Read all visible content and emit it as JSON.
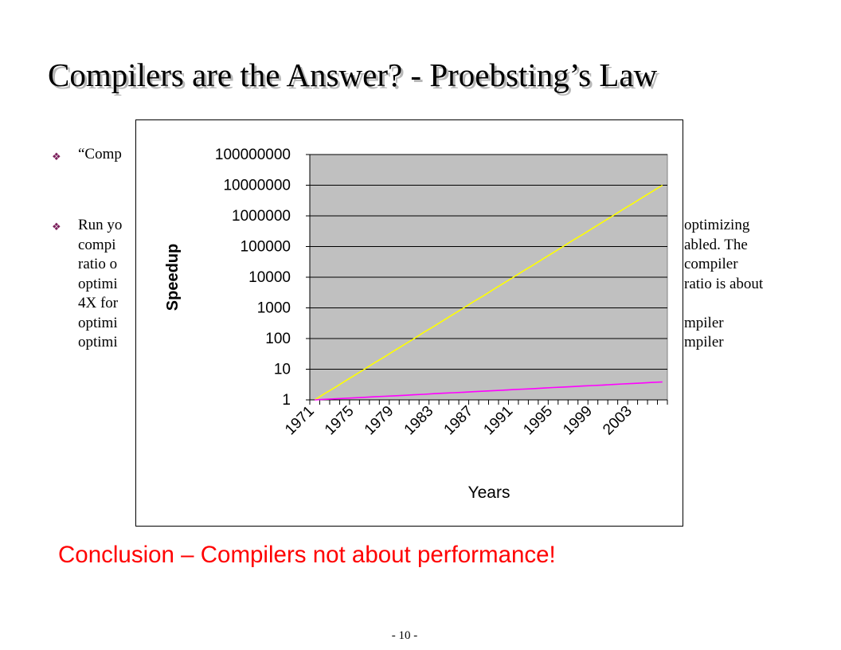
{
  "slide": {
    "title": "Compilers are the Answer? - Proebsting’s Law",
    "bullets": [
      {
        "icon": "diamond-bullet-icon",
        "lines": [
          "“Comp"
        ]
      },
      {
        "icon": "diamond-bullet-icon",
        "lines": [
          "Run yo",
          "compi",
          "ratio o",
          "optimi",
          "4X for",
          "optimi",
          "optimi"
        ]
      }
    ],
    "right_lines": [
      "optimizing",
      "abled. The",
      "compiler",
      "ratio is about",
      "mpiler",
      "mpiler"
    ],
    "conclusion": "Conclusion – Compilers not about performance!",
    "page_number": "- 10 -"
  },
  "chart_data": {
    "type": "line",
    "ylabel": "Speedup",
    "xlabel": "Years",
    "yscale": "log",
    "ylim": [
      1,
      100000000
    ],
    "y_ticks": [
      "100000000",
      "10000000",
      "1000000",
      "100000",
      "10000",
      "1000",
      "100",
      "10",
      "1"
    ],
    "x_range": [
      1971,
      2006
    ],
    "x_tick_labels": [
      "1971",
      "1975",
      "1979",
      "1983",
      "1987",
      "1991",
      "1995",
      "1999",
      "2003"
    ],
    "plot_background": "#c0c0c0",
    "grid": true,
    "series": [
      {
        "color": "#ffff00",
        "x": [
          1971,
          1972,
          1973,
          1974,
          1975,
          1976,
          1977,
          1978,
          1979,
          1980,
          1981,
          1982,
          1983,
          1984,
          1985,
          1986,
          1987,
          1988,
          1989,
          1990,
          1991,
          1992,
          1993,
          1994,
          1995,
          1996,
          1997,
          1998,
          1999,
          2000,
          2001,
          2002,
          2003,
          2004,
          2005,
          2006
        ],
        "y": [
          1,
          1.6,
          2.5,
          4,
          6.3,
          10,
          16,
          25,
          40,
          63,
          100,
          160,
          250,
          400,
          630,
          1000,
          1600,
          2500,
          4000,
          6300,
          10000,
          16000,
          25000,
          40000,
          63000,
          100000,
          160000,
          250000,
          400000,
          630000,
          1000000,
          1600000,
          2500000,
          4000000,
          6300000,
          10000000
        ]
      },
      {
        "color": "#ff00ff",
        "x": [
          1971,
          1972,
          1973,
          1974,
          1975,
          1976,
          1977,
          1978,
          1979,
          1980,
          1981,
          1982,
          1983,
          1984,
          1985,
          1986,
          1987,
          1988,
          1989,
          1990,
          1991,
          1992,
          1993,
          1994,
          1995,
          1996,
          1997,
          1998,
          1999,
          2000,
          2001,
          2002,
          2003,
          2004,
          2005,
          2006
        ],
        "y": [
          1,
          1.04,
          1.08,
          1.12,
          1.17,
          1.21,
          1.26,
          1.31,
          1.36,
          1.41,
          1.47,
          1.52,
          1.59,
          1.65,
          1.71,
          1.78,
          1.85,
          1.92,
          2,
          2.08,
          2.16,
          2.24,
          2.33,
          2.42,
          2.52,
          2.62,
          2.72,
          2.83,
          2.94,
          3.05,
          3.17,
          3.3,
          3.43,
          3.56,
          3.7,
          3.85
        ]
      }
    ]
  }
}
